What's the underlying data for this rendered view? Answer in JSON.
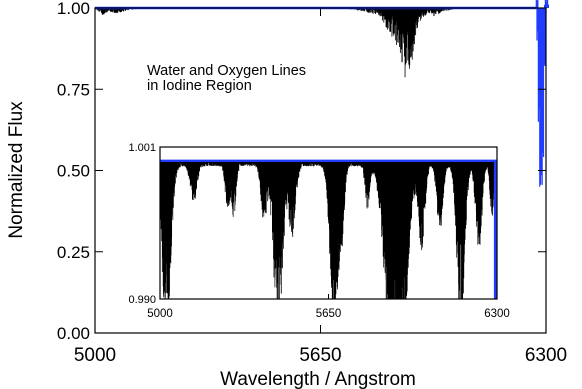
{
  "colors": {
    "spectrum": "#000000",
    "continuum": "#1f3cff",
    "background": "#ffffff"
  },
  "chart_data": [
    {
      "type": "line",
      "xlabel": "Wavelength / Angstrom",
      "ylabel": "Normalized Flux",
      "xlim": [
        5000,
        6300
      ],
      "ylim": [
        0.0,
        1.0
      ],
      "x_ticks": [
        5000,
        5650,
        6300
      ],
      "x_tick_labels": [
        "5000",
        "5650",
        "6300"
      ],
      "y_ticks": [
        0.0,
        0.25,
        0.5,
        0.75,
        1.0
      ],
      "y_tick_labels": [
        "0.00",
        "0.25",
        "0.50",
        "0.75",
        "1.00"
      ],
      "annotation": [
        "Water and Oxygen Lines",
        "in Iodine Region"
      ],
      "grid": false,
      "series": [
        {
          "color": "#000000",
          "x": [
            5000,
            5020,
            5040,
            5060,
            5100,
            5150,
            5200,
            5250,
            5300,
            5350,
            5400,
            5450,
            5500,
            5550,
            5600,
            5650,
            5700,
            5750,
            5800,
            5820,
            5850,
            5875,
            5895,
            5900,
            5915,
            5925,
            5940,
            5960,
            5980,
            6000,
            6050,
            6100,
            6150,
            6200,
            6250,
            6280,
            6300
          ],
          "y": [
            1.0,
            0.98,
            0.99,
            0.985,
            0.995,
            1.0,
            1.0,
            1.0,
            1.0,
            1.0,
            1.0,
            1.0,
            1.0,
            1.0,
            1.0,
            1.0,
            1.0,
            0.995,
            0.985,
            0.98,
            0.93,
            0.88,
            0.8,
            0.82,
            0.86,
            0.93,
            0.97,
            0.985,
            0.975,
            0.99,
            1.0,
            1.0,
            1.0,
            1.0,
            1.0,
            1.0,
            1.0
          ]
        },
        {
          "color": "#1f3cff",
          "x": [
            5000,
            6272,
            6274,
            6278,
            6282,
            6286,
            6290,
            6293,
            6296,
            6300
          ],
          "y": [
            1.0,
            1.0,
            0.9,
            0.65,
            0.45,
            0.52,
            0.8,
            0.95,
            1.0,
            1.0
          ]
        }
      ]
    },
    {
      "type": "line",
      "xlim": [
        5000,
        6300
      ],
      "ylim": [
        0.99,
        1.001
      ],
      "x_ticks": [
        5000,
        5650,
        6300
      ],
      "x_tick_labels": [
        "5000",
        "5650",
        "6300"
      ],
      "y_ticks": [
        0.99,
        1.001
      ],
      "y_tick_labels": [
        "0.990",
        "1.001"
      ],
      "grid": false,
      "absorption_bands": [
        {
          "center": 5025,
          "halfwidth": 28,
          "depth": 0.0112
        },
        {
          "center": 5130,
          "halfwidth": 22,
          "depth": 0.0025
        },
        {
          "center": 5260,
          "halfwidth": 15,
          "depth": 0.003
        },
        {
          "center": 5285,
          "halfwidth": 15,
          "depth": 0.0035
        },
        {
          "center": 5400,
          "halfwidth": 18,
          "depth": 0.004
        },
        {
          "center": 5455,
          "halfwidth": 30,
          "depth": 0.0112
        },
        {
          "center": 5510,
          "halfwidth": 22,
          "depth": 0.005
        },
        {
          "center": 5670,
          "halfwidth": 25,
          "depth": 0.0112
        },
        {
          "center": 5700,
          "halfwidth": 18,
          "depth": 0.005
        },
        {
          "center": 5800,
          "halfwidth": 15,
          "depth": 0.003
        },
        {
          "center": 5890,
          "halfwidth": 45,
          "depth": 0.0112
        },
        {
          "center": 5935,
          "halfwidth": 40,
          "depth": 0.0112
        },
        {
          "center": 6010,
          "halfwidth": 20,
          "depth": 0.006
        },
        {
          "center": 6080,
          "halfwidth": 20,
          "depth": 0.0045
        },
        {
          "center": 6160,
          "halfwidth": 25,
          "depth": 0.0112
        },
        {
          "center": 6230,
          "halfwidth": 20,
          "depth": 0.006
        },
        {
          "center": 6280,
          "halfwidth": 12,
          "depth": 0.004
        }
      ],
      "series": [
        {
          "color": "#000000",
          "continuum": 1.0
        },
        {
          "color": "#1f3cff",
          "continuum": 1.0,
          "edge_x": [
            6288,
            6300
          ]
        }
      ]
    }
  ]
}
